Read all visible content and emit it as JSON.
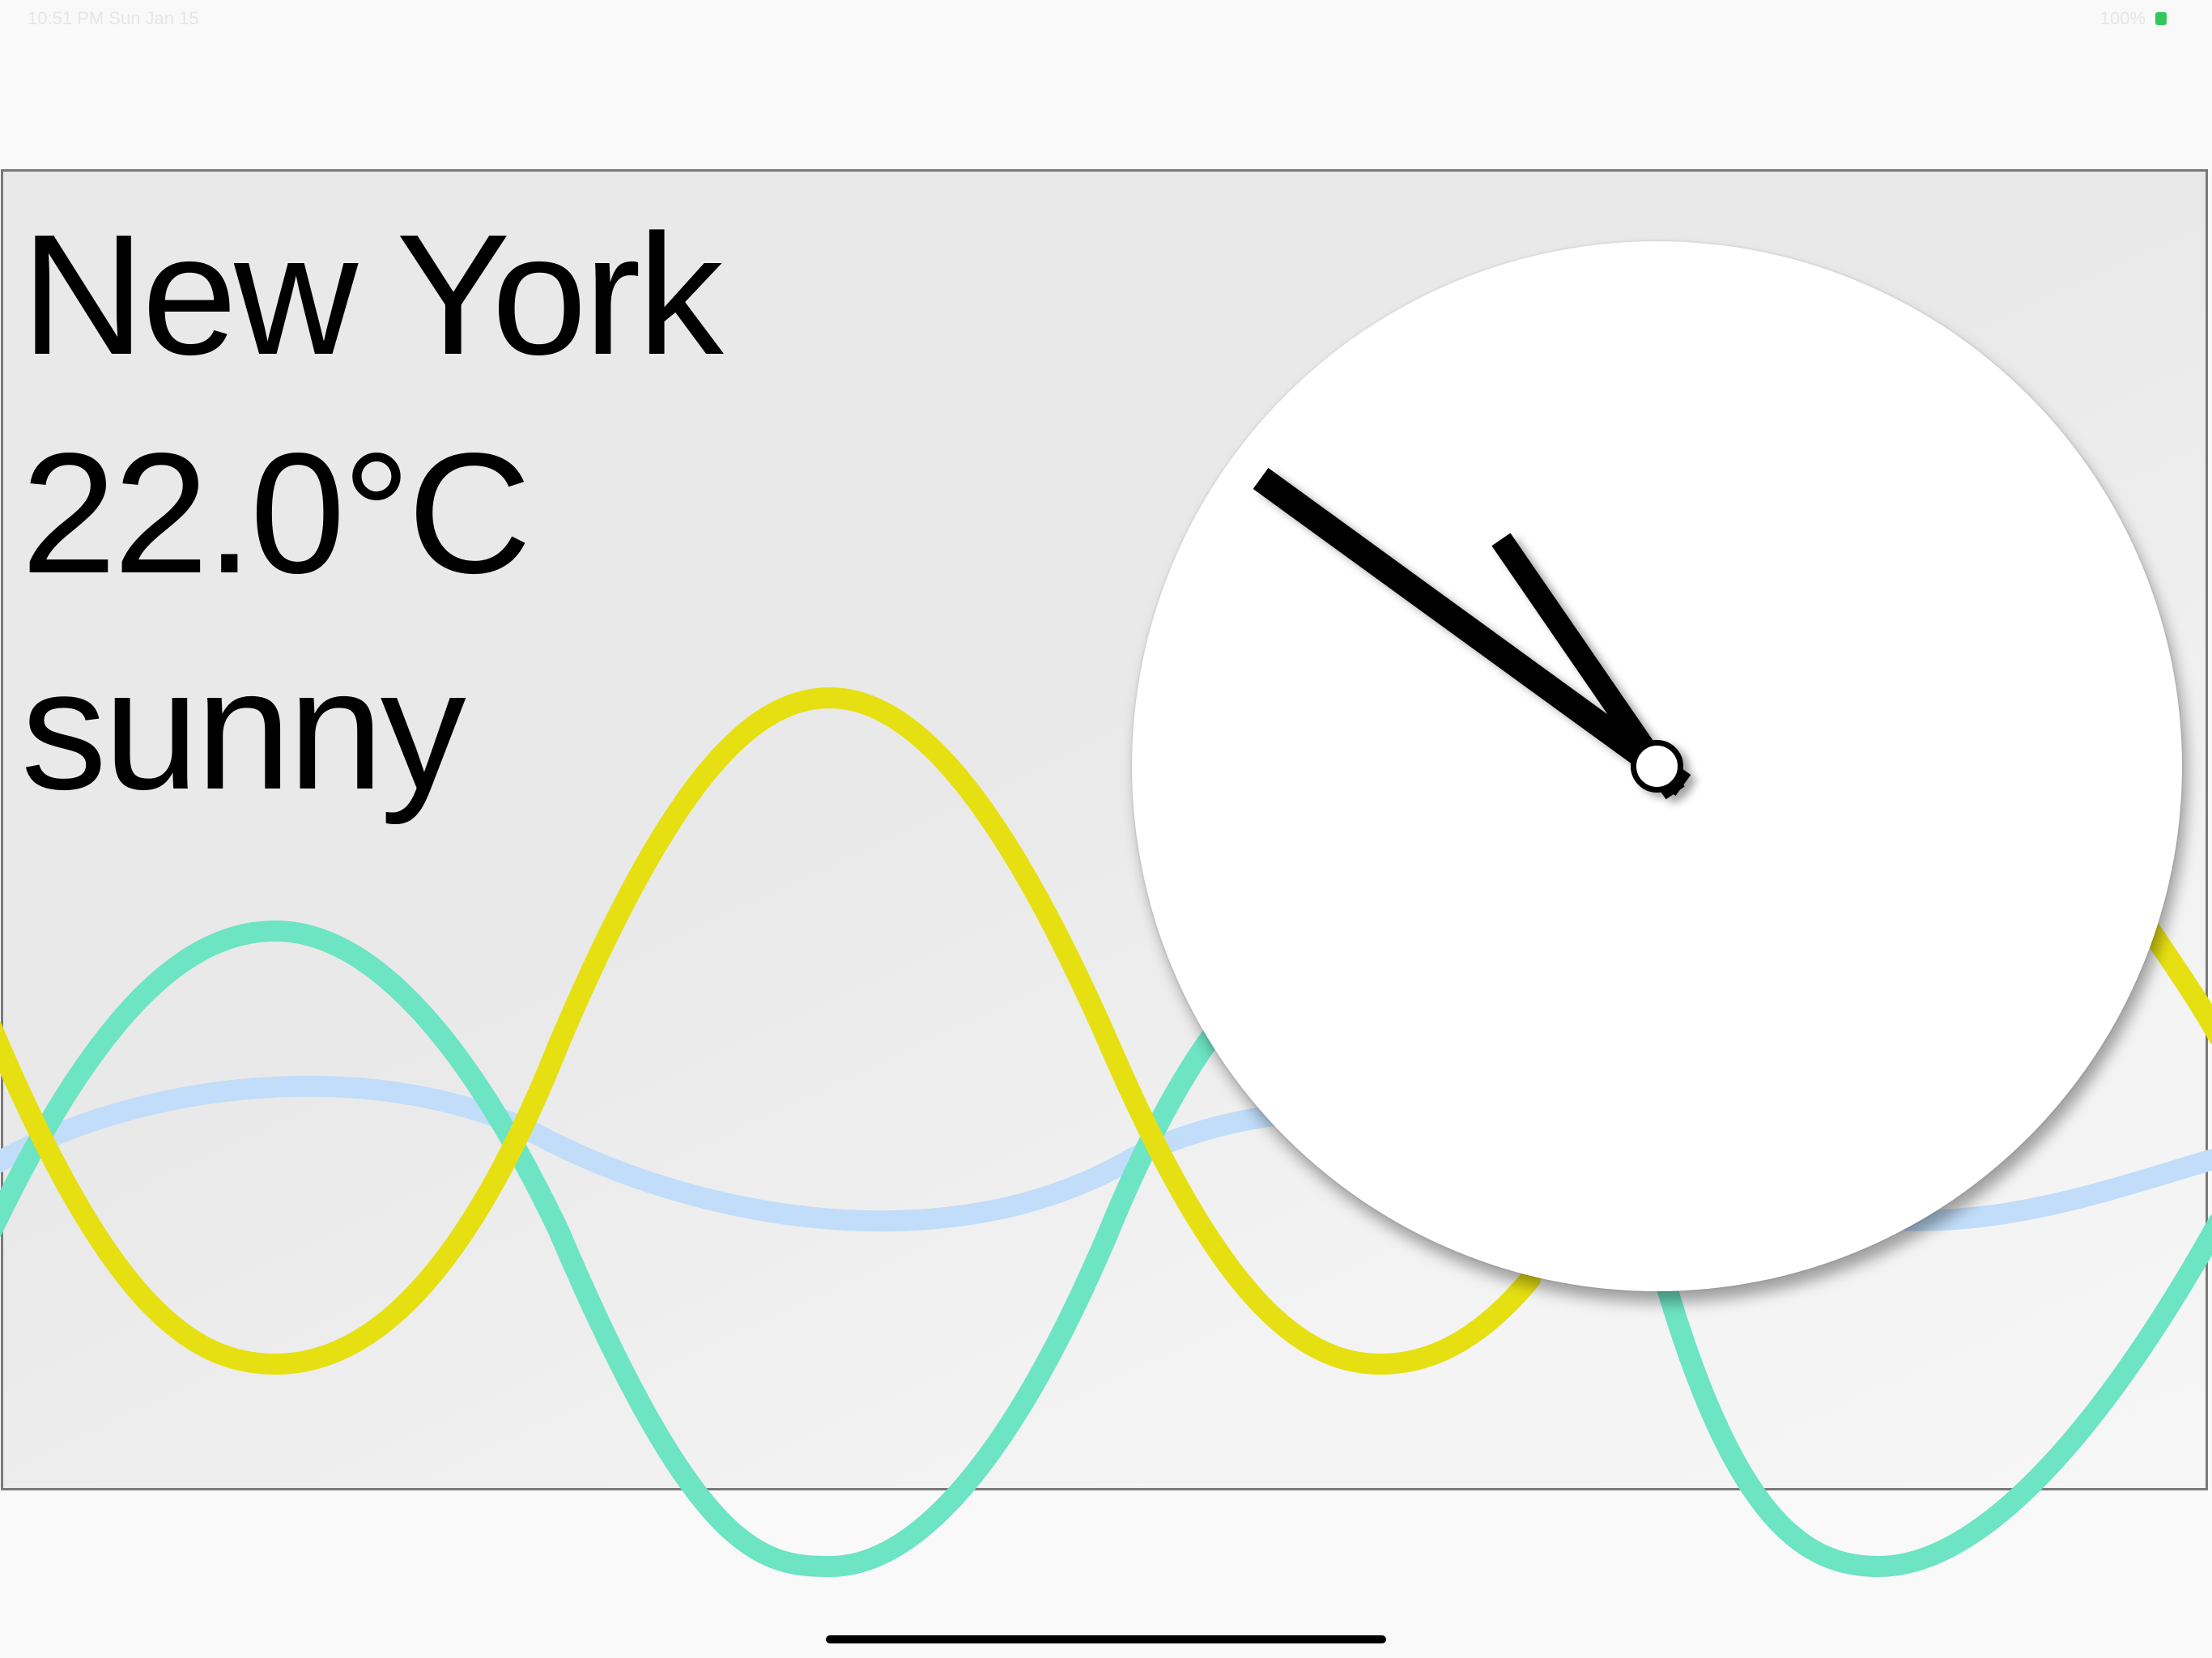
{
  "status_bar": {
    "time": "10:51 PM  Sun Jan 15",
    "right_text": "100%",
    "battery_icon": "battery-charging-icon"
  },
  "weather": {
    "city": "New York",
    "temperature": "22.0°C",
    "condition": "sunny"
  },
  "clock": {
    "hour": 10,
    "minute": 51
  },
  "colors": {
    "wave_yellow": "#e6e013",
    "wave_teal": "#6de4c4",
    "wave_blue": "#c1ddf9",
    "panel_border": "#7a7a7a",
    "hands": "#000000"
  }
}
